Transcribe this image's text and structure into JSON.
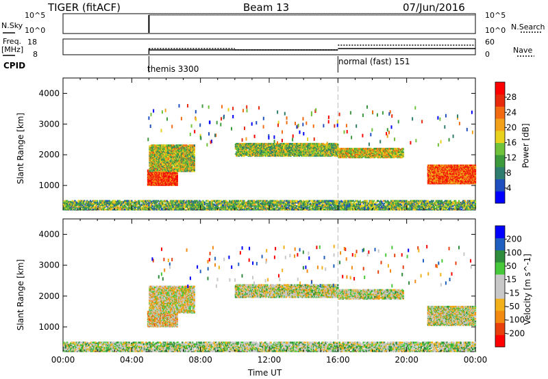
{
  "header": {
    "radar": "TIGER (fitACF)",
    "beam": "Beam 13",
    "date": "07/Jun/2016"
  },
  "panels": {
    "nsky": {
      "label": "N.Sky",
      "left_ticks": [
        "10^5",
        "10^0"
      ],
      "right_ticks": [
        "10^5",
        "10^0"
      ],
      "right_label": "N.Search"
    },
    "freq": {
      "label_line1": "Freq.",
      "label_line2": "[MHz]",
      "left_ticks": [
        "18",
        "8"
      ],
      "right_ticks": [
        "60",
        "0"
      ],
      "right_label": "Nave"
    },
    "cpid": {
      "label": "CPID",
      "modes": [
        "themis 3300",
        "normal (fast) 151"
      ]
    }
  },
  "chart_data": [
    {
      "type": "heatmap",
      "title": "",
      "xlabel": "Time UT",
      "ylabel": "Slant Range [km]",
      "x_ticks": [
        "00:00",
        "04:00",
        "08:00",
        "12:00",
        "16:00",
        "20:00",
        "00:00"
      ],
      "y_ticks": [
        "1000",
        "2000",
        "3000",
        "4000"
      ],
      "xlim_hours": [
        0,
        24
      ],
      "ylim_km": [
        200,
        4500
      ],
      "colorbar": {
        "label": "Power [dB]",
        "ticks": [
          "4",
          "8",
          "12",
          "16",
          "20",
          "24",
          "28"
        ],
        "range": [
          0,
          30
        ],
        "colors": [
          "#0000ff",
          "#1f4fbf",
          "#2e7d6e",
          "#3c9a3c",
          "#6fc23a",
          "#e8d21e",
          "#f2a11a",
          "#f26a12",
          "#e82a0c",
          "#ff0000"
        ]
      },
      "scatter_bands": [
        {
          "t_start": 4.9,
          "t_end": 6.6,
          "r_low": 1000,
          "r_high": 1500,
          "level": 0.85
        },
        {
          "t_start": 5.0,
          "t_end": 7.6,
          "r_low": 1450,
          "r_high": 2300,
          "level": 0.5
        },
        {
          "t_start": 10.0,
          "t_end": 16.0,
          "r_low": 1950,
          "r_high": 2350,
          "level": 0.45
        },
        {
          "t_start": 16.0,
          "t_end": 19.8,
          "r_low": 1900,
          "r_high": 2200,
          "level": 0.55
        },
        {
          "t_start": 21.2,
          "t_end": 24.0,
          "r_low": 1050,
          "r_high": 1650,
          "level": 0.8
        },
        {
          "t_start": 0.0,
          "t_end": 24.0,
          "r_low": 200,
          "r_high": 500,
          "level": 0.4
        }
      ]
    },
    {
      "type": "heatmap",
      "title": "",
      "xlabel": "Time UT",
      "ylabel": "Slant Range [km]",
      "x_ticks": [
        "00:00",
        "04:00",
        "08:00",
        "12:00",
        "16:00",
        "20:00",
        "00:00"
      ],
      "y_ticks": [
        "1000",
        "2000",
        "3000",
        "4000"
      ],
      "xlim_hours": [
        0,
        24
      ],
      "ylim_km": [
        200,
        4500
      ],
      "colorbar": {
        "label": "Velocity [m s^-1]",
        "ticks": [
          "200",
          "100",
          "50",
          "15",
          "-15",
          "-50",
          "-100",
          "-200"
        ],
        "range": [
          -250,
          250
        ],
        "colors": [
          "#ff0000",
          "#e8400c",
          "#f28a12",
          "#f2b01a",
          "#c8c8c8",
          "#c8c8c8",
          "#46c83a",
          "#2e8c3c",
          "#1f5fbf",
          "#0000ff"
        ]
      },
      "scatter_bands": [
        {
          "t_start": 4.9,
          "t_end": 6.6,
          "r_low": 1000,
          "r_high": 1500,
          "level": 0.4
        },
        {
          "t_start": 5.0,
          "t_end": 7.6,
          "r_low": 1450,
          "r_high": 2300,
          "level": 0.45
        },
        {
          "t_start": 10.0,
          "t_end": 16.0,
          "r_low": 1950,
          "r_high": 2350,
          "level": 0.5
        },
        {
          "t_start": 16.0,
          "t_end": 19.8,
          "r_low": 1900,
          "r_high": 2200,
          "level": 0.5
        },
        {
          "t_start": 21.2,
          "t_end": 24.0,
          "r_low": 1050,
          "r_high": 1650,
          "level": 0.5
        },
        {
          "t_start": 0.0,
          "t_end": 24.0,
          "r_low": 200,
          "r_high": 500,
          "level": 0.55
        }
      ]
    }
  ]
}
